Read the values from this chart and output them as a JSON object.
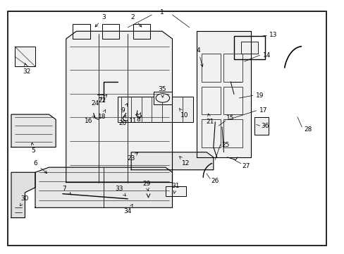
{
  "background_color": "#ffffff",
  "border_color": "#000000",
  "line_color": "#000000",
  "text_color": "#000000",
  "fig_width": 4.89,
  "fig_height": 3.6,
  "dpi": 100
}
